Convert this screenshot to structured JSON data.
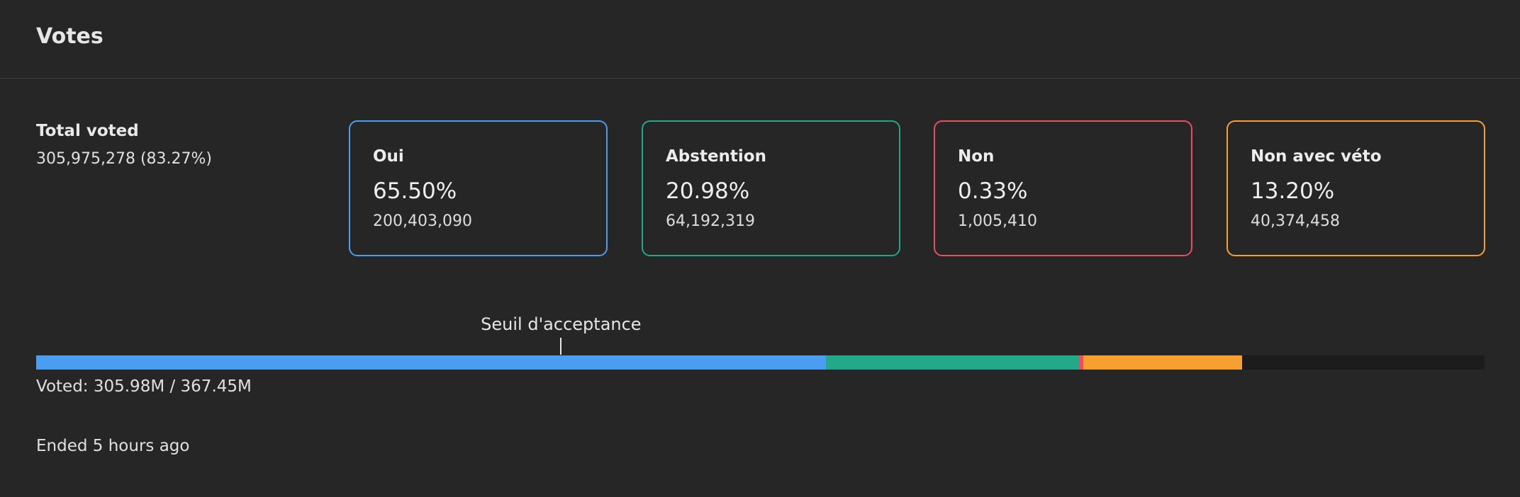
{
  "header": {
    "title": "Votes"
  },
  "total": {
    "label": "Total voted",
    "value": "305,975,278 (83.27%)"
  },
  "options": [
    {
      "label": "Oui",
      "percent": "65.50%",
      "count": "200,403,090",
      "color": "#4a9df0",
      "share": 65.5
    },
    {
      "label": "Abstention",
      "percent": "20.98%",
      "count": "64,192,319",
      "color": "#21a98a",
      "share": 20.98
    },
    {
      "label": "Non",
      "percent": "0.33%",
      "count": "1,005,410",
      "color": "#ec4e5f",
      "share": 0.33
    },
    {
      "label": "Non avec véto",
      "percent": "13.20%",
      "count": "40,374,458",
      "color": "#f7a030",
      "share": 13.2
    }
  ],
  "progress": {
    "threshold_label": "Seuil d'acceptance",
    "threshold_fraction": 0.3623,
    "voted_fraction": 0.8327,
    "voted_text": "Voted: 305.98M / 367.45M",
    "track_color": "#1c1c1c"
  },
  "status": {
    "ended": "Ended 5 hours ago"
  }
}
